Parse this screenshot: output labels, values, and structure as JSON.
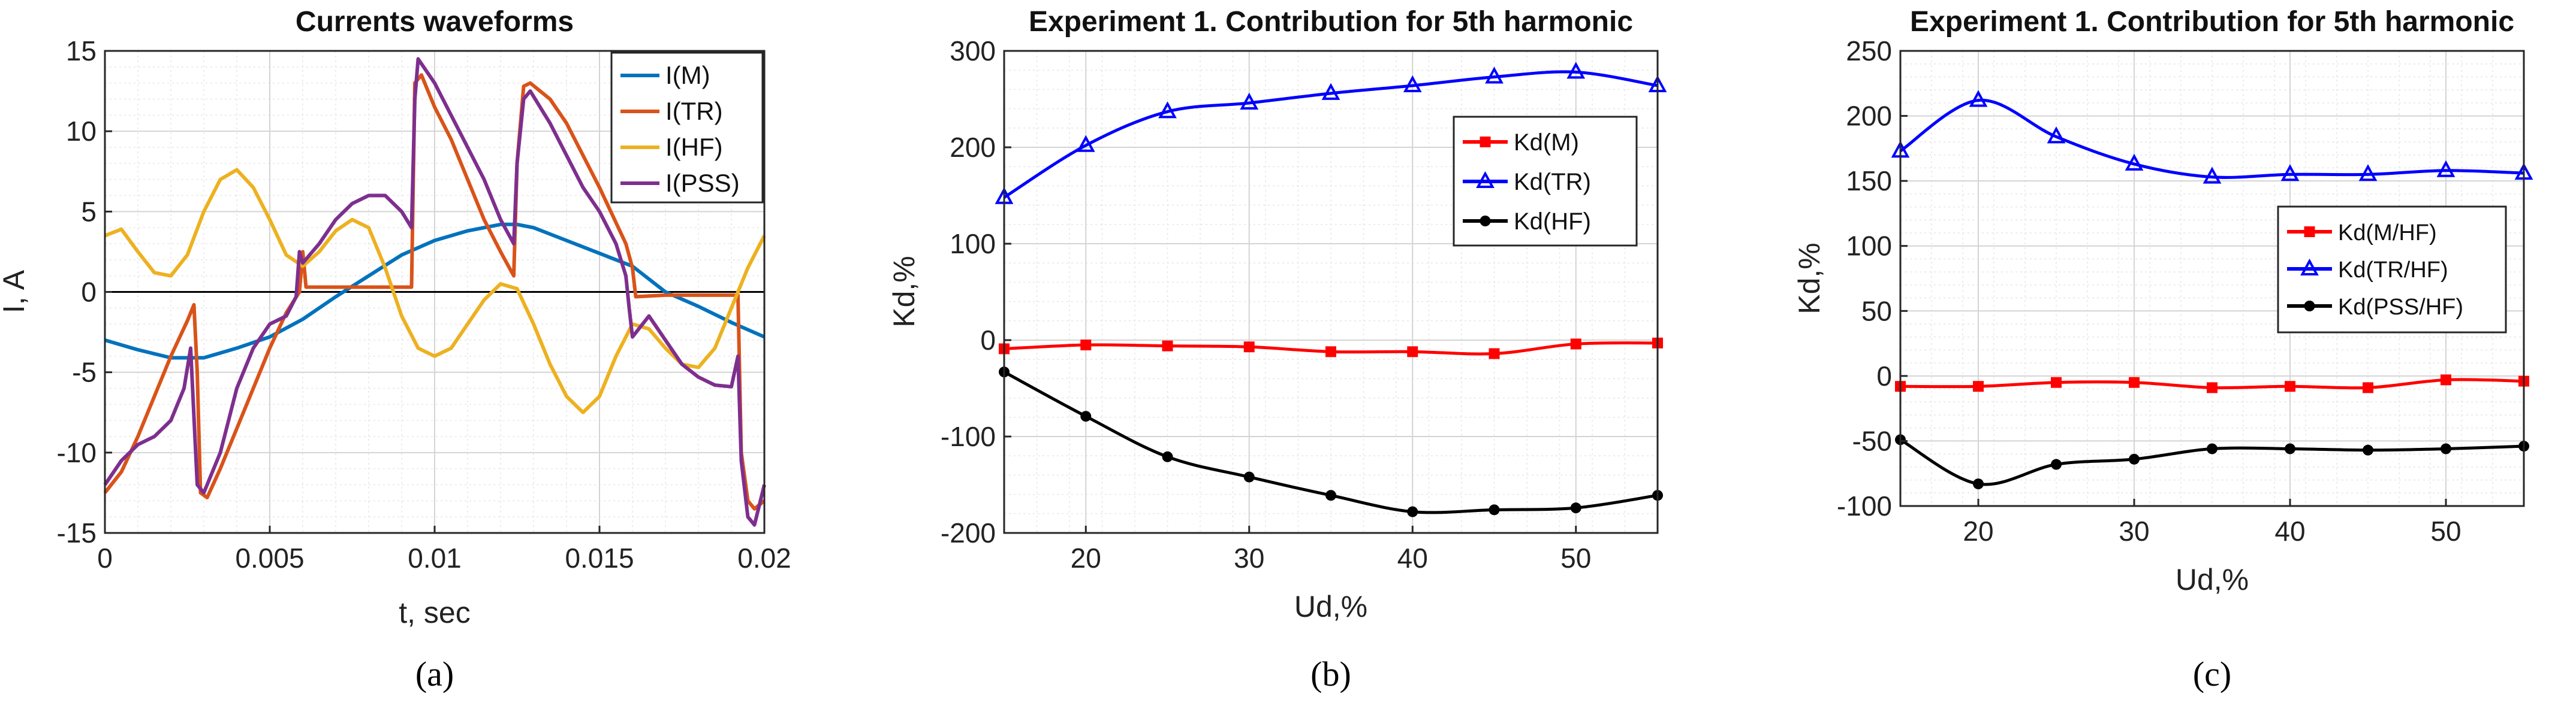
{
  "chart_data": [
    {
      "type": "line",
      "title": "Currents waveforms",
      "xlabel": "t, sec",
      "ylabel": "I, A",
      "xlim": [
        0,
        0.02
      ],
      "ylim": [
        -15,
        15
      ],
      "xticks": [
        0,
        0.005,
        0.01,
        0.015,
        0.02
      ],
      "xtick_labels": [
        "0",
        "0.005",
        "0.01",
        "0.015",
        "0.02"
      ],
      "yticks": [
        -15,
        -10,
        -5,
        0,
        5,
        10,
        15
      ],
      "ytick_labels": [
        "-15",
        "-10",
        "-5",
        "0",
        "5",
        "10",
        "15"
      ],
      "grid": true,
      "zero_line": true,
      "legend_position": "top-right",
      "caption": "(a)",
      "series": [
        {
          "name": "I(M)",
          "color": "#0072BD",
          "x": [
            0,
            0.001,
            0.002,
            0.003,
            0.004,
            0.005,
            0.006,
            0.007,
            0.008,
            0.009,
            0.01,
            0.011,
            0.012,
            0.0125,
            0.013,
            0.014,
            0.015,
            0.016,
            0.017,
            0.018,
            0.019,
            0.02
          ],
          "y": [
            -3,
            -3.6,
            -4.1,
            -4.1,
            -3.5,
            -2.8,
            -1.7,
            -0.3,
            1.0,
            2.3,
            3.2,
            3.8,
            4.2,
            4.2,
            4.0,
            3.2,
            2.4,
            1.6,
            0.0,
            -0.9,
            -1.9,
            -2.8
          ]
        },
        {
          "name": "I(TR)",
          "color": "#D95319",
          "x": [
            0,
            0.0005,
            0.001,
            0.0015,
            0.002,
            0.0025,
            0.0027,
            0.0028,
            0.0029,
            0.0031,
            0.0035,
            0.004,
            0.0045,
            0.005,
            0.0055,
            0.0059,
            0.006,
            0.0061,
            0.007,
            0.008,
            0.009,
            0.0093,
            0.0094,
            0.0096,
            0.0098,
            0.01,
            0.0105,
            0.011,
            0.0115,
            0.012,
            0.0124,
            0.0125,
            0.0127,
            0.0129,
            0.0135,
            0.014,
            0.015,
            0.0158,
            0.016,
            0.0161,
            0.017,
            0.018,
            0.0192,
            0.0193,
            0.0195,
            0.0197,
            0.02
          ],
          "y": [
            -12.5,
            -11.2,
            -9.0,
            -6.5,
            -4.0,
            -1.8,
            -0.8,
            -5,
            -12.5,
            -12.8,
            -11,
            -8.5,
            -6.0,
            -3.5,
            -1.3,
            0.0,
            2.5,
            0.3,
            0.3,
            0.3,
            0.3,
            0.3,
            13,
            13.5,
            12.5,
            11.5,
            9.5,
            7,
            4.5,
            2.5,
            1.0,
            8,
            12.8,
            13.0,
            12,
            10.5,
            6.5,
            3.0,
            1.5,
            -0.3,
            -0.2,
            -0.2,
            -0.2,
            -10,
            -13,
            -13.5,
            -13
          ]
        },
        {
          "name": "I(HF)",
          "color": "#EDB120",
          "x": [
            0,
            0.0005,
            0.001,
            0.0015,
            0.002,
            0.0025,
            0.003,
            0.0035,
            0.004,
            0.0045,
            0.005,
            0.0055,
            0.006,
            0.0065,
            0.007,
            0.0075,
            0.008,
            0.0085,
            0.009,
            0.0095,
            0.01,
            0.0105,
            0.011,
            0.0115,
            0.012,
            0.0125,
            0.013,
            0.0135,
            0.014,
            0.0145,
            0.015,
            0.0155,
            0.016,
            0.0165,
            0.017,
            0.0175,
            0.018,
            0.0185,
            0.019,
            0.0195,
            0.02
          ],
          "y": [
            3.5,
            3.9,
            2.5,
            1.2,
            1.0,
            2.3,
            5.0,
            7.0,
            7.6,
            6.5,
            4.5,
            2.3,
            1.6,
            2.5,
            3.8,
            4.5,
            4.0,
            1.5,
            -1.5,
            -3.5,
            -4.0,
            -3.5,
            -2.0,
            -0.5,
            0.5,
            0.2,
            -2.0,
            -4.5,
            -6.5,
            -7.5,
            -6.5,
            -4.0,
            -2.0,
            -2.3,
            -3.5,
            -4.5,
            -4.7,
            -3.5,
            -1.0,
            1.5,
            3.5
          ]
        },
        {
          "name": "I(PSS)",
          "color": "#7E2F8E",
          "x": [
            0,
            0.0005,
            0.001,
            0.0015,
            0.002,
            0.0024,
            0.0026,
            0.0028,
            0.003,
            0.0035,
            0.004,
            0.0045,
            0.005,
            0.0055,
            0.0058,
            0.0059,
            0.006,
            0.0065,
            0.007,
            0.0075,
            0.008,
            0.0085,
            0.009,
            0.0093,
            0.0094,
            0.0095,
            0.01,
            0.0105,
            0.011,
            0.0115,
            0.012,
            0.0124,
            0.0125,
            0.0127,
            0.0129,
            0.0135,
            0.014,
            0.0145,
            0.015,
            0.0155,
            0.0158,
            0.0159,
            0.016,
            0.0165,
            0.017,
            0.0175,
            0.018,
            0.0185,
            0.019,
            0.0192,
            0.0193,
            0.0195,
            0.0197,
            0.02
          ],
          "y": [
            -12,
            -10.5,
            -9.5,
            -9.0,
            -8.0,
            -6.0,
            -3.5,
            -12.0,
            -12.5,
            -10,
            -6,
            -3.5,
            -2.0,
            -1.5,
            -0.3,
            2.5,
            1.8,
            3.0,
            4.5,
            5.5,
            6.0,
            6.0,
            5.0,
            4.0,
            12,
            14.5,
            13.0,
            11.0,
            9.0,
            7.0,
            4.5,
            3.0,
            8.0,
            12.0,
            12.5,
            10.5,
            8.5,
            6.5,
            5.0,
            3.0,
            1.0,
            -1.0,
            -2.8,
            -1.5,
            -3.0,
            -4.5,
            -5.3,
            -5.8,
            -5.9,
            -4.0,
            -10.5,
            -14.0,
            -14.5,
            -12.0
          ]
        }
      ]
    },
    {
      "type": "line",
      "title": "Experiment 1. Contribution for 5th harmonic",
      "xlabel": "Ud,%",
      "ylabel": "Kd,%",
      "xlim": [
        15,
        55
      ],
      "ylim": [
        -200,
        300
      ],
      "xticks": [
        20,
        30,
        40,
        50
      ],
      "xtick_labels": [
        "20",
        "30",
        "40",
        "50"
      ],
      "yticks": [
        -200,
        -100,
        0,
        100,
        200,
        300
      ],
      "ytick_labels": [
        "-200",
        "-100",
        "0",
        "100",
        "200",
        "300"
      ],
      "grid": true,
      "legend_position": "right",
      "caption": "(b)",
      "categories": [
        15,
        20,
        25,
        30,
        35,
        40,
        45,
        50,
        55
      ],
      "series": [
        {
          "name": "Kd(M)",
          "color": "#FF0000",
          "marker": "square",
          "values": [
            -9,
            -5,
            -6,
            -7,
            -12,
            -12,
            -14,
            -4,
            -3
          ]
        },
        {
          "name": "Kd(TR)",
          "color": "#0000FF",
          "marker": "triangle",
          "values": [
            148,
            202,
            237,
            246,
            256,
            264,
            273,
            278,
            264
          ]
        },
        {
          "name": "Kd(HF)",
          "color": "#000000",
          "marker": "dot",
          "values": [
            -33,
            -79,
            -121,
            -142,
            -161,
            -178,
            -176,
            -174,
            -161
          ]
        }
      ]
    },
    {
      "type": "line",
      "title": "Experiment 1. Contribution for 5th harmonic",
      "xlabel": "Ud,%",
      "ylabel": "Kd,%",
      "xlim": [
        15,
        55
      ],
      "ylim": [
        -100,
        250
      ],
      "xticks": [
        20,
        30,
        40,
        50
      ],
      "xtick_labels": [
        "20",
        "30",
        "40",
        "50"
      ],
      "yticks": [
        -100,
        -50,
        0,
        50,
        100,
        150,
        200,
        250
      ],
      "ytick_labels": [
        "-100",
        "-50",
        "0",
        "50",
        "100",
        "150",
        "200",
        "250"
      ],
      "grid": true,
      "legend_position": "right",
      "caption": "(c)",
      "categories": [
        15,
        20,
        25,
        30,
        35,
        40,
        45,
        50,
        55
      ],
      "series": [
        {
          "name": "Kd(M/HF)",
          "color": "#FF0000",
          "marker": "square",
          "values": [
            -8,
            -8,
            -5,
            -5,
            -9,
            -8,
            -9,
            -3,
            -4
          ]
        },
        {
          "name": "Kd(TR/HF)",
          "color": "#0000FF",
          "marker": "triangle",
          "values": [
            173,
            212,
            184,
            163,
            153,
            155,
            155,
            158,
            156
          ]
        },
        {
          "name": "Kd(PSS/HF)",
          "color": "#000000",
          "marker": "dot",
          "values": [
            -49,
            -83,
            -68,
            -64,
            -56,
            -56,
            -57,
            -56,
            -54
          ]
        }
      ]
    }
  ]
}
